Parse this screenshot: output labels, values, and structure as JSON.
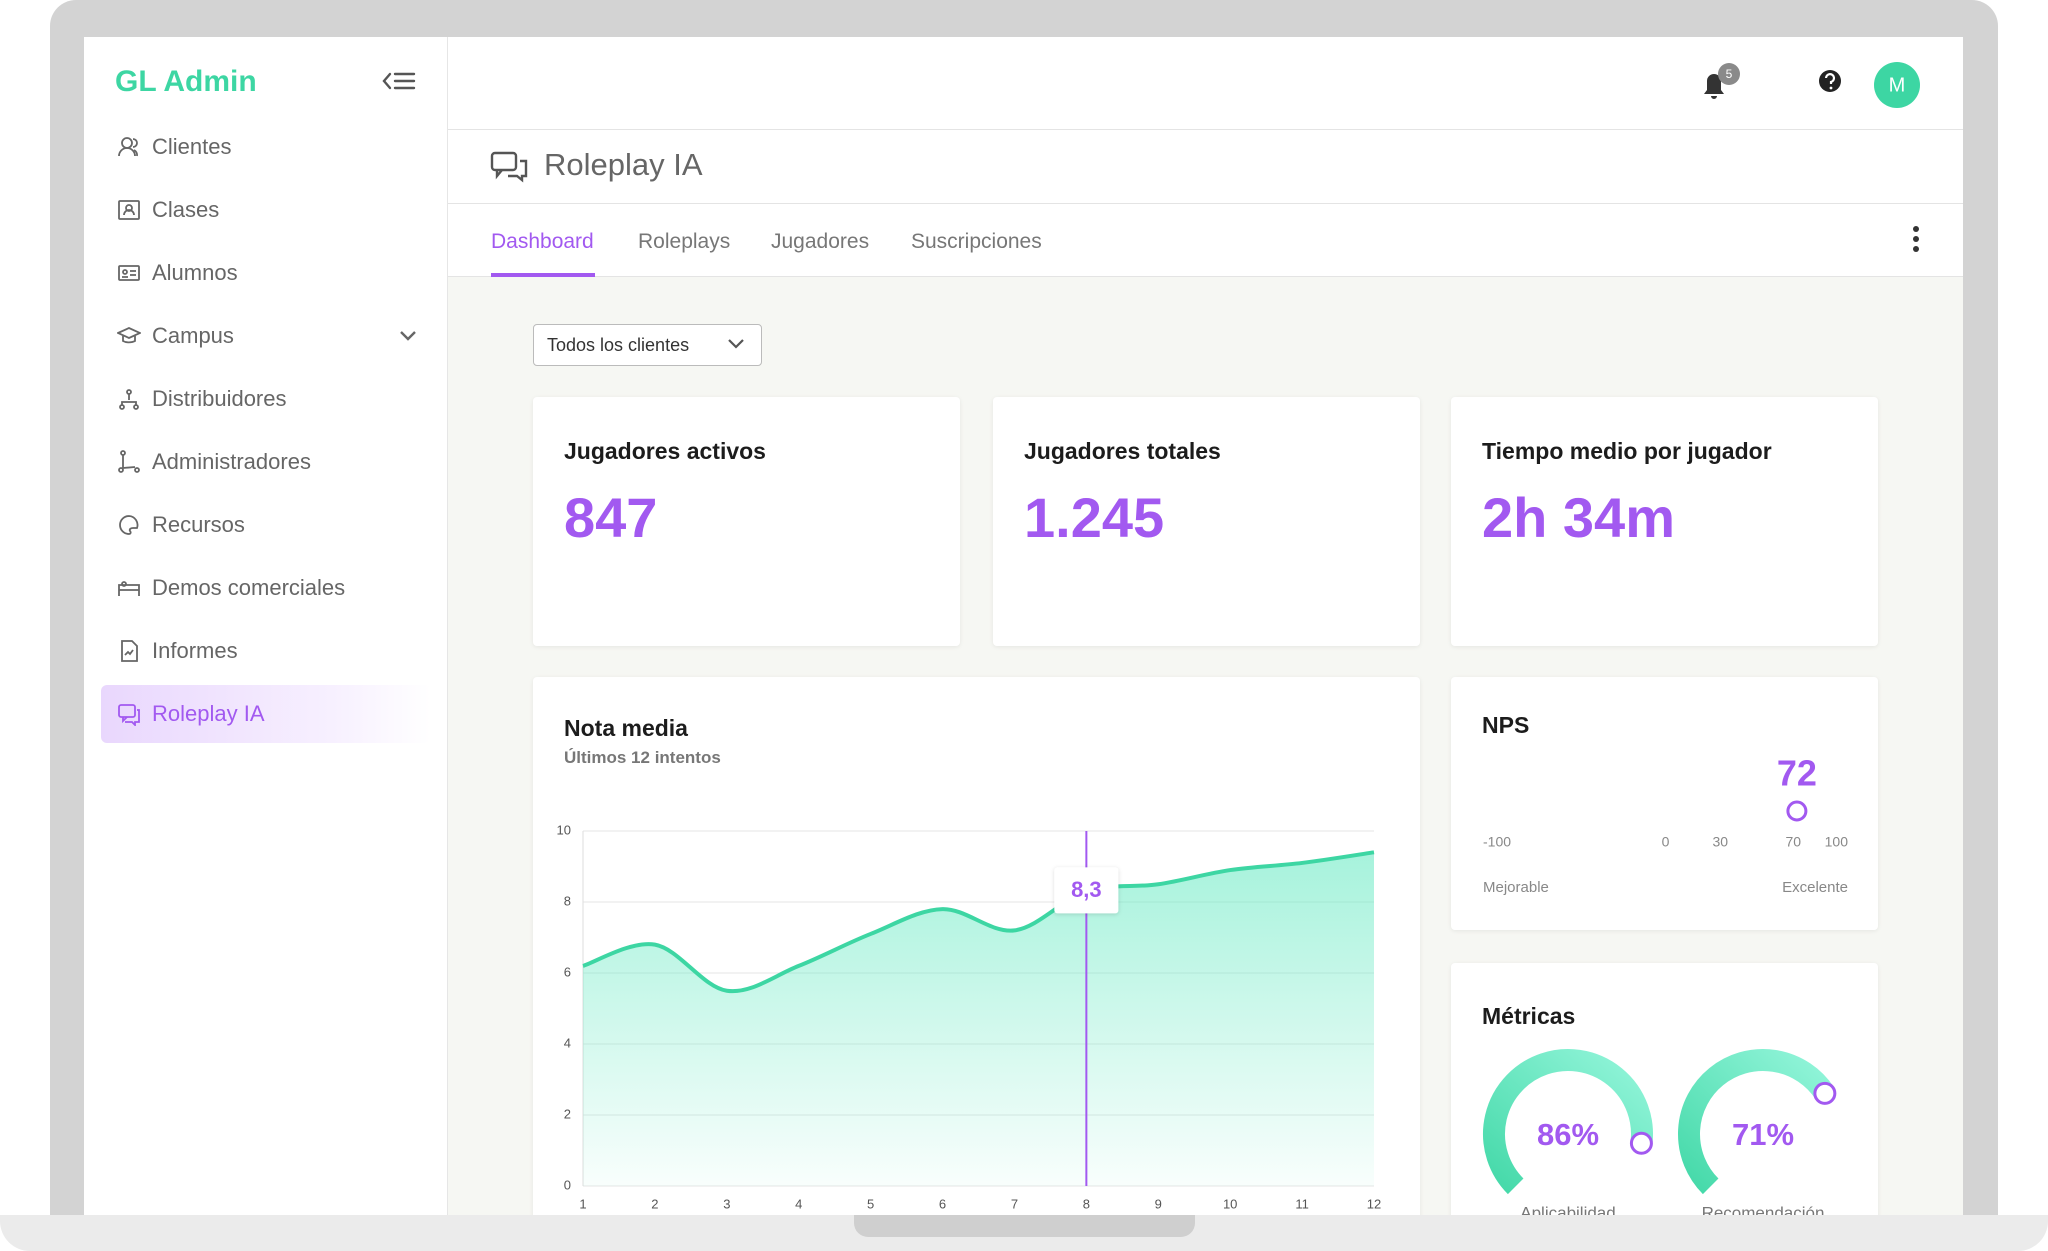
{
  "sidebar": {
    "brand": "GL Admin",
    "items": [
      "Clientes",
      "Clases",
      "Alumnos",
      "Campus",
      "Distribuidores",
      "Administradores",
      "Recursos",
      "Demos comerciales",
      "Informes",
      "Roleplay IA"
    ]
  },
  "header": {
    "notifications": 5,
    "avatar": "M"
  },
  "page_title": "Roleplay IA",
  "tabs": [
    "Dashboard",
    "Roleplays",
    "Jugadores",
    "Suscripciones"
  ],
  "filter": "Todos los clientes",
  "kpis": [
    {
      "label": "Jugadores activos",
      "value": "847"
    },
    {
      "label": "Jugadores totales",
      "value": "1.245"
    },
    {
      "label": "Tiempo medio por jugador",
      "value": "2h 34m"
    }
  ],
  "chart_data": {
    "type": "line",
    "title": "Nota media",
    "subtitle": "Últimos 12 intentos",
    "x": [
      1,
      2,
      3,
      4,
      5,
      6,
      7,
      8,
      9,
      10,
      11,
      12
    ],
    "values": [
      6.2,
      6.8,
      5.5,
      6.2,
      7.1,
      7.8,
      7.2,
      8.3,
      8.5,
      8.9,
      9.1,
      9.4
    ],
    "value_labels": [
      null,
      null,
      null,
      null,
      null,
      null,
      null,
      "8,3",
      null,
      null,
      null,
      null
    ],
    "color": "#3dd6a3",
    "xlim": [
      1,
      12
    ],
    "ylim": [
      0,
      10
    ],
    "xticks": [
      1,
      2,
      3,
      4,
      5,
      6,
      7,
      8,
      9,
      10,
      11,
      12
    ],
    "yticks": [
      0,
      2,
      4,
      6,
      8,
      10
    ],
    "grid": true
  },
  "nps": {
    "title": "NPS",
    "value": 72,
    "lim": [
      -100,
      100
    ],
    "ticks": [
      -100,
      0,
      30,
      70,
      100
    ],
    "low_label": "Mejorable",
    "high_label": "Excelente"
  },
  "metrics": {
    "title": "Métricas",
    "gauges": [
      {
        "label": "Aplicabilidad",
        "value": 86,
        "value_label": "86%"
      },
      {
        "label": "Recomendación",
        "value": 71,
        "value_label": "71%"
      }
    ]
  }
}
